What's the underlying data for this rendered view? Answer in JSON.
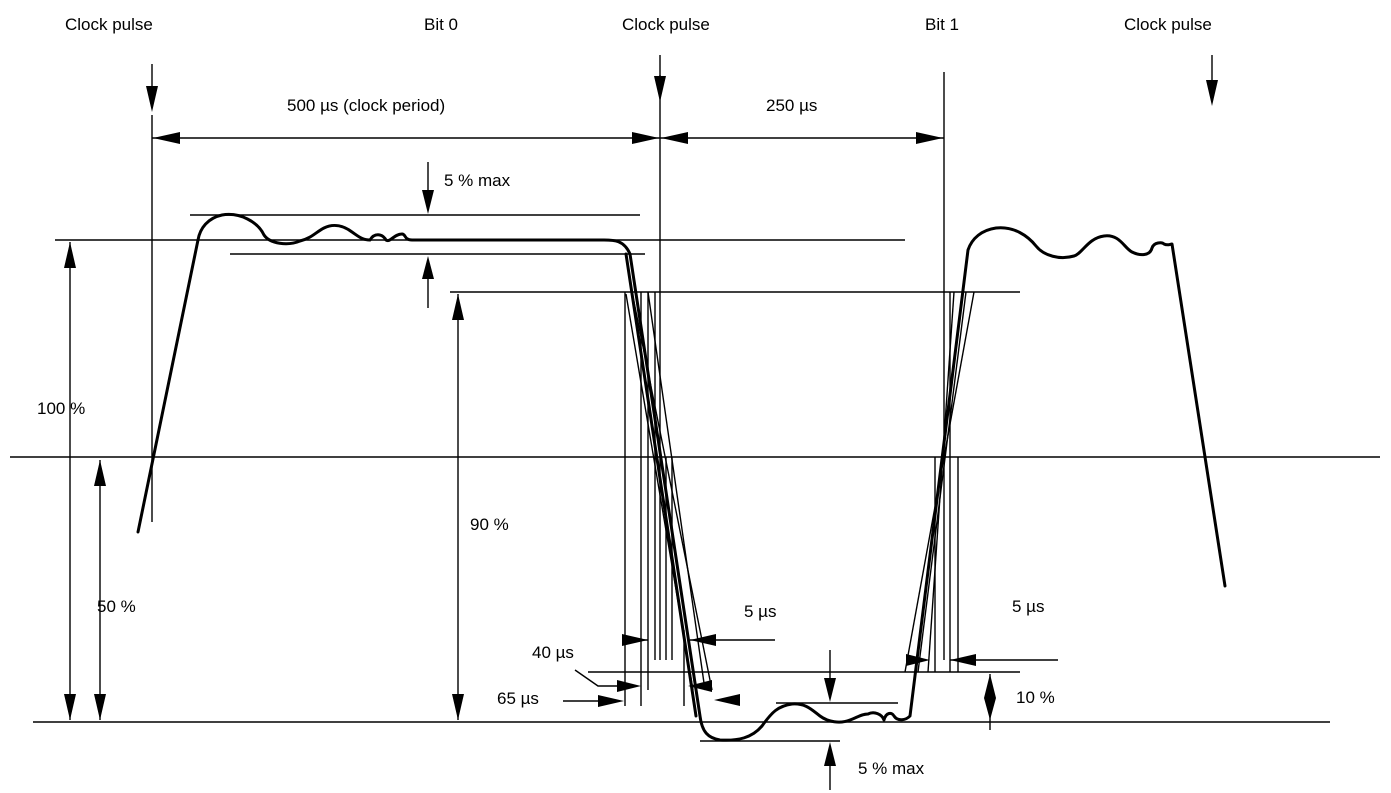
{
  "labels": {
    "clock_pulse_1": "Clock pulse",
    "bit0": "Bit 0",
    "clock_pulse_2": "Clock pulse",
    "bit1": "Bit 1",
    "clock_pulse_3": "Clock pulse",
    "clock_period": "500 µs (clock period)",
    "half_period": "250 µs",
    "overshoot_top": "5 % max",
    "overshoot_bottom": "5 % max",
    "level_100": "100 %",
    "level_90": "90 %",
    "level_50": "50 %",
    "level_10": "10 %",
    "tol_5us_left": "5 µs",
    "tol_5us_right": "5 µs",
    "t_40us": "40 µs",
    "t_65us": "65 µs"
  },
  "colors": {
    "stroke": "#000000",
    "background": "#ffffff"
  }
}
